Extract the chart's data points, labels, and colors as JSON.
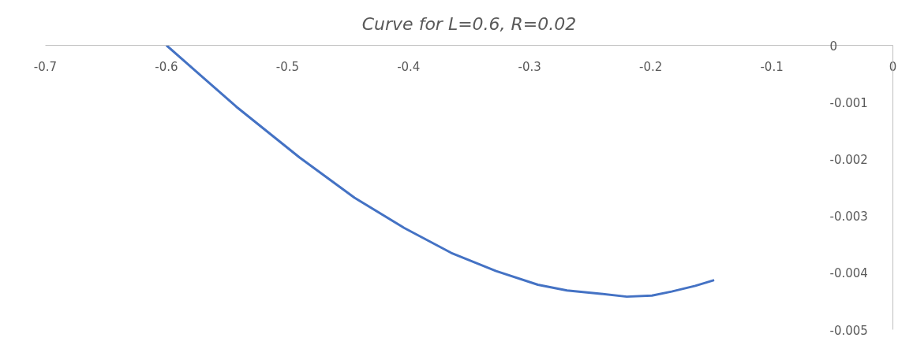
{
  "chart_data": {
    "type": "line",
    "title": "Curve for L=0.6, R=0.02",
    "series": [
      {
        "color": "#4472c4",
        "x": [
          -0.6,
          -0.5423,
          -0.4902,
          -0.4447,
          -0.4038,
          -0.3648,
          -0.3277,
          -0.2932,
          -0.2692,
          -0.2412,
          -0.2198,
          -0.199,
          -0.1827,
          -0.1632,
          -0.1476
        ],
        "values": [
          0,
          -0.00108,
          -0.00197,
          -0.00268,
          -0.00321,
          -0.00365,
          -0.00397,
          -0.00421,
          -0.00431,
          -0.00437,
          -0.00442,
          -0.0044,
          -0.00433,
          -0.00423,
          -0.00413
        ]
      }
    ],
    "xlim": [
      -0.7,
      0
    ],
    "ylim": [
      -0.005,
      0
    ],
    "xticks": [
      -0.7,
      -0.6,
      -0.5,
      -0.4,
      -0.3,
      -0.2,
      -0.1,
      0
    ],
    "yticks": [
      0,
      -0.001,
      -0.002,
      -0.003,
      -0.004,
      -0.005
    ],
    "grid": false,
    "marker": "none",
    "line_style": "solid"
  }
}
